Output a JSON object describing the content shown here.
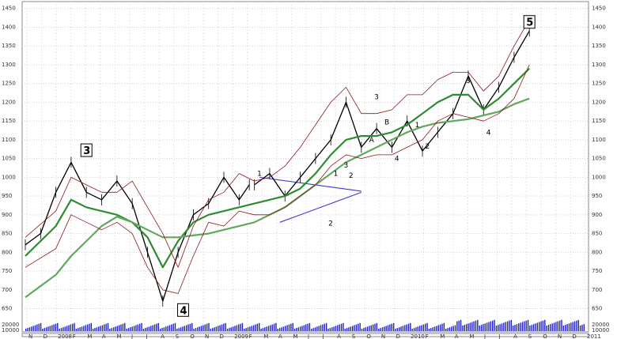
{
  "chart_data": {
    "type": "line",
    "title": "",
    "xlabel": "",
    "ylabel": "",
    "ylim": [
      630,
      1460
    ],
    "y_ticks": [
      "1450",
      "1400",
      "1350",
      "1300",
      "1250",
      "1200",
      "1150",
      "1100",
      "1050",
      "1000",
      "950",
      "900",
      "850",
      "800",
      "750",
      "700",
      "650"
    ],
    "volume_ticks": [
      "20000",
      "10000"
    ],
    "x_ticks": [
      "N",
      "D",
      "2008",
      "F",
      "M",
      "A",
      "M",
      "J",
      "J",
      "A",
      "S",
      "O",
      "N",
      "D",
      "2009",
      "F",
      "M",
      "A",
      "M",
      "J",
      "J",
      "A",
      "S",
      "O",
      "N",
      "D",
      "2010",
      "F",
      "M",
      "A",
      "M",
      "J",
      "J",
      "A",
      "S",
      "O",
      "N",
      "D",
      "2011"
    ],
    "series": [
      {
        "name": "",
        "color": "#000000",
        "x": [
          0,
          3,
          6,
          9,
          12,
          15,
          18,
          21,
          24,
          27,
          30,
          33,
          36,
          39,
          42,
          44
        ],
        "values": [
          820,
          850,
          960,
          1040,
          960,
          940,
          990,
          930,
          800,
          670,
          800,
          900,
          930,
          1000,
          940,
          980
        ]
      },
      {
        "name": "",
        "color": "#000000",
        "x": [
          45,
          48,
          51,
          54,
          57,
          60,
          63,
          66,
          69,
          72,
          75,
          78,
          81,
          84,
          87,
          90,
          93,
          96,
          99
        ],
        "values": [
          980,
          1010,
          950,
          1000,
          1050,
          1100,
          1200,
          1080,
          1130,
          1080,
          1150,
          1070,
          1120,
          1170,
          1270,
          1180,
          1240,
          1320,
          1390
        ]
      },
      {
        "name": "",
        "color": "#2e8b2e",
        "x": [
          0,
          6,
          9,
          12,
          15,
          18,
          21,
          24,
          27,
          30,
          33,
          36,
          39,
          42,
          45,
          48,
          51,
          54,
          57,
          60,
          63,
          66,
          69,
          72,
          75,
          78,
          81,
          84,
          87,
          90,
          93,
          96,
          99
        ],
        "values": [
          790,
          870,
          940,
          920,
          910,
          900,
          880,
          840,
          760,
          830,
          880,
          900,
          910,
          920,
          930,
          940,
          950,
          970,
          1010,
          1060,
          1100,
          1110,
          1110,
          1120,
          1140,
          1170,
          1200,
          1220,
          1220,
          1180,
          1210,
          1250,
          1290
        ]
      },
      {
        "name": "",
        "color": "#5fa85f",
        "x": [
          0,
          6,
          9,
          12,
          15,
          18,
          21,
          24,
          27,
          30,
          33,
          36,
          39,
          42,
          45,
          48,
          51,
          54,
          57,
          60,
          63,
          66,
          69,
          72,
          75,
          78,
          81,
          84,
          87,
          90,
          93,
          96,
          99
        ],
        "values": [
          680,
          740,
          790,
          830,
          870,
          895,
          880,
          860,
          840,
          840,
          845,
          850,
          860,
          870,
          880,
          900,
          920,
          950,
          980,
          1010,
          1040,
          1060,
          1080,
          1100,
          1120,
          1135,
          1145,
          1150,
          1155,
          1165,
          1175,
          1195,
          1210
        ]
      },
      {
        "name": "",
        "color": "#8b1a1a",
        "x": [
          0,
          6,
          9,
          12,
          15,
          18,
          21,
          24,
          27,
          30,
          33,
          36,
          39,
          42,
          45,
          48,
          51,
          54,
          57,
          60,
          63,
          66,
          69,
          72,
          75,
          78,
          81,
          84,
          87,
          90,
          93,
          96,
          99
        ],
        "values": [
          840,
          910,
          1000,
          980,
          960,
          960,
          990,
          920,
          850,
          760,
          870,
          940,
          960,
          1010,
          990,
          1000,
          1030,
          1080,
          1140,
          1200,
          1240,
          1170,
          1170,
          1180,
          1220,
          1220,
          1260,
          1280,
          1280,
          1230,
          1270,
          1350,
          1420
        ]
      },
      {
        "name": "",
        "color": "#8b1a1a",
        "x": [
          0,
          6,
          9,
          12,
          15,
          18,
          21,
          24,
          27,
          30,
          33,
          36,
          39,
          42,
          45,
          48,
          51,
          54,
          57,
          60,
          63,
          66,
          69,
          72,
          75,
          78,
          81,
          84,
          87,
          90,
          93,
          96,
          99
        ],
        "values": [
          760,
          810,
          900,
          880,
          860,
          880,
          850,
          760,
          700,
          690,
          790,
          880,
          870,
          910,
          900,
          900,
          920,
          950,
          980,
          1030,
          1060,
          1050,
          1060,
          1060,
          1080,
          1100,
          1150,
          1170,
          1160,
          1150,
          1170,
          1210,
          1300
        ]
      }
    ],
    "trendlines": [
      {
        "color": "#3a3acf",
        "x": [
          46,
          66
        ],
        "values": [
          1000,
          963
        ]
      },
      {
        "color": "#3a3acf",
        "x": [
          50,
          66
        ],
        "values": [
          880,
          960
        ]
      }
    ],
    "annotations": [
      {
        "text": "3",
        "boxed": true,
        "x": 12,
        "y": 1068
      },
      {
        "text": "4",
        "boxed": true,
        "x": 31,
        "y": 642
      },
      {
        "text": "5",
        "boxed": true,
        "x": 99,
        "y": 1410
      },
      {
        "text": "1",
        "boxed": false,
        "x": 46,
        "y": 1010
      },
      {
        "text": "2",
        "boxed": false,
        "x": 60,
        "y": 878
      },
      {
        "text": "1",
        "boxed": false,
        "x": 61,
        "y": 1010
      },
      {
        "text": "3",
        "boxed": false,
        "x": 63,
        "y": 1032
      },
      {
        "text": "2",
        "boxed": false,
        "x": 64,
        "y": 1005
      },
      {
        "text": "3",
        "boxed": false,
        "x": 69,
        "y": 1215
      },
      {
        "text": "A",
        "boxed": false,
        "x": 68,
        "y": 1100
      },
      {
        "text": "B",
        "boxed": false,
        "x": 71,
        "y": 1147
      },
      {
        "text": "4",
        "boxed": false,
        "x": 73,
        "y": 1050
      },
      {
        "text": "1",
        "boxed": false,
        "x": 77,
        "y": 1140
      },
      {
        "text": "2",
        "boxed": false,
        "x": 79,
        "y": 1083
      },
      {
        "text": "3",
        "boxed": false,
        "x": 87,
        "y": 1258
      },
      {
        "text": "4",
        "boxed": false,
        "x": 91,
        "y": 1120
      }
    ],
    "grid": true,
    "legend": "none"
  }
}
